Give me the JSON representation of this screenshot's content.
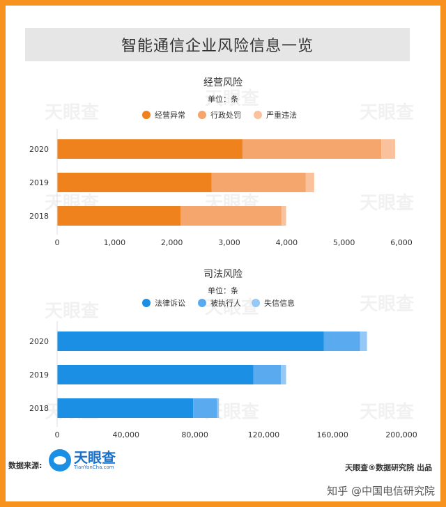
{
  "header": {
    "title": "智能通信企业风险信息一览"
  },
  "colors": {
    "frame": "#f7921e",
    "orange_series": [
      "#f0821e",
      "#f4a66c",
      "#f9c29c"
    ],
    "blue_series": [
      "#1a8fe3",
      "#5aaaf0",
      "#94c8f6"
    ]
  },
  "watermark_text": "天眼查",
  "chart_data": [
    {
      "type": "bar",
      "orientation": "horizontal",
      "stacked": true,
      "title": "经营风险",
      "subtitle": "单位：条",
      "categories": [
        "2020",
        "2019",
        "2018"
      ],
      "series": [
        {
          "name": "经营异常",
          "values": [
            3230,
            2690,
            2150
          ]
        },
        {
          "name": "行政处罚",
          "values": [
            2420,
            1640,
            1760
          ]
        },
        {
          "name": "严重违法",
          "values": [
            240,
            150,
            80
          ]
        }
      ],
      "xlim": [
        0,
        6000
      ],
      "xticks": [
        "0",
        "1,000",
        "2,000",
        "3,000",
        "4,000",
        "5,000",
        "6,000"
      ],
      "legend": "top",
      "grid": false
    },
    {
      "type": "bar",
      "orientation": "horizontal",
      "stacked": true,
      "title": "司法风险",
      "subtitle": "单位：条",
      "categories": [
        "2020",
        "2019",
        "2018"
      ],
      "series": [
        {
          "name": "法律诉讼",
          "values": [
            155000,
            114000,
            79000
          ]
        },
        {
          "name": "被执行人",
          "values": [
            21000,
            16000,
            14000
          ]
        },
        {
          "name": "失信信息",
          "values": [
            4000,
            3000,
            1000
          ]
        }
      ],
      "xlim": [
        0,
        200000
      ],
      "xticks": [
        "0",
        "40,000",
        "80,000",
        "120,000",
        "160,000",
        "200,000"
      ],
      "legend": "top",
      "grid": false
    }
  ],
  "footer": {
    "source_label": "数据来源:",
    "logo_name": "天眼查",
    "logo_url": "TianYanCha.com",
    "publisher": "天眼查®数据研究院 出品",
    "credit": "知乎 @中国电信研究院"
  }
}
